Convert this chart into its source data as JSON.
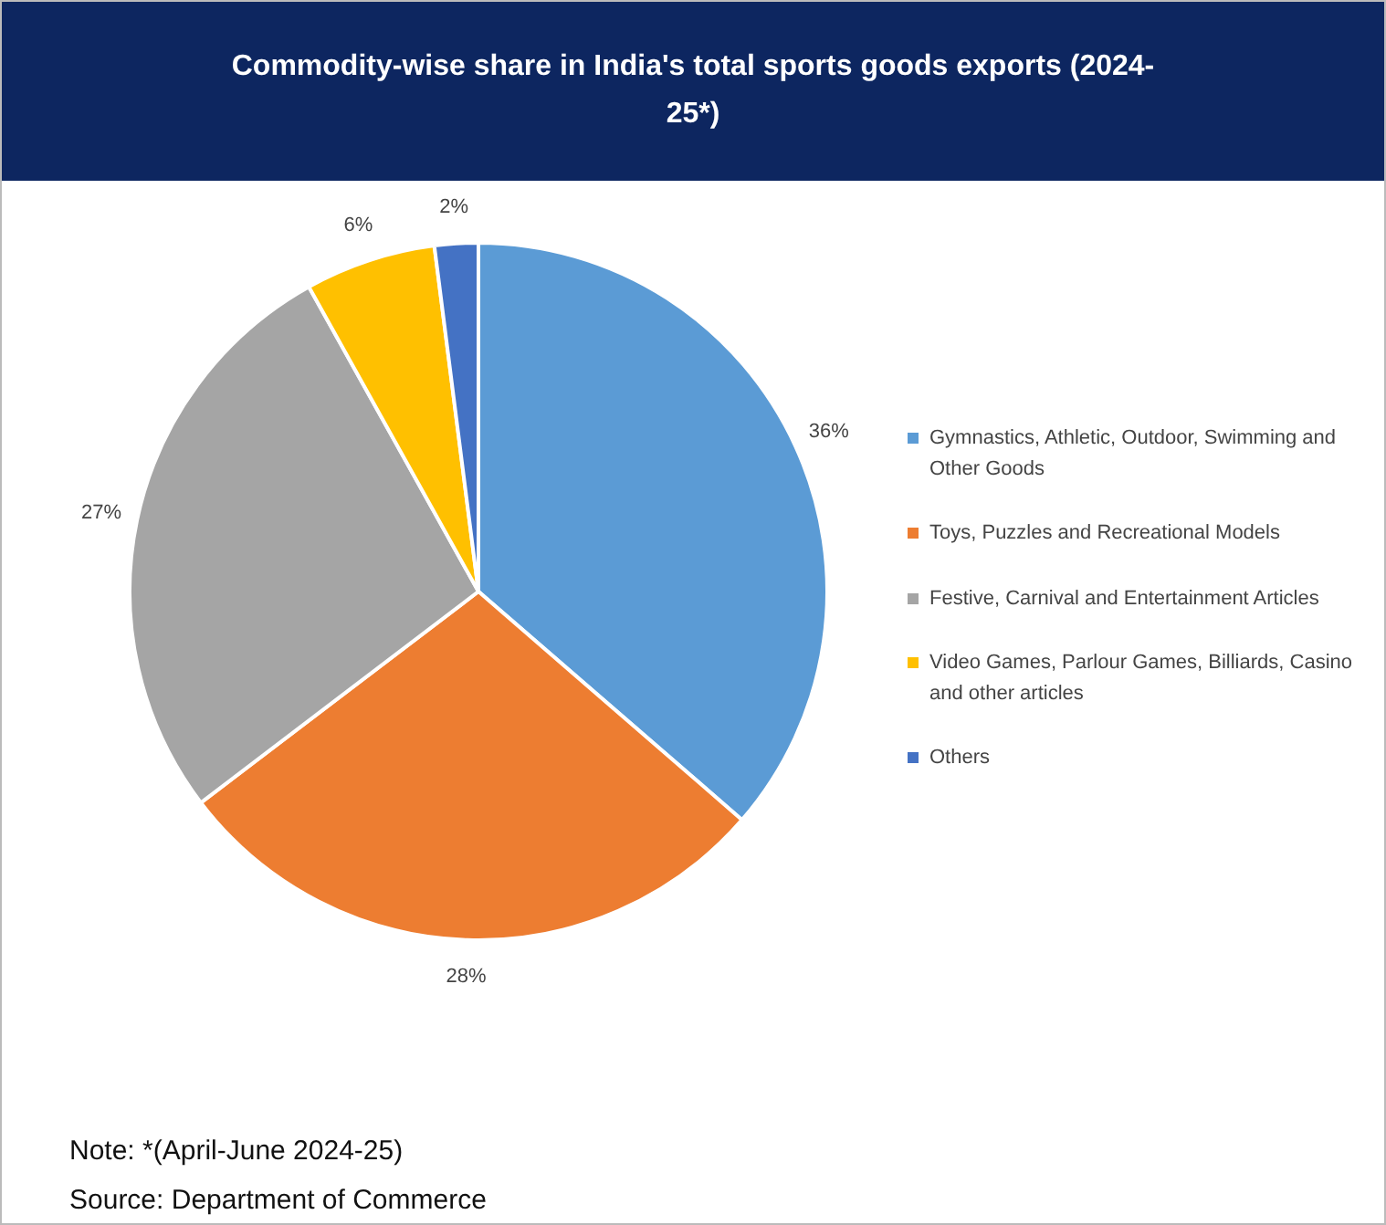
{
  "chart_data": {
    "type": "pie",
    "title": "Commodity-wise share in India's total sports goods exports (2024-25*)",
    "categories": [
      "Gymnastics, Athletic, Outdoor, Swimming and Other Goods",
      "Toys, Puzzles and Recreational Models",
      "Festive, Carnival and Entertainment Articles",
      "Video Games, Parlour Games, Billiards, Casino and other articles",
      "Others"
    ],
    "values": [
      36,
      28,
      27,
      6,
      2
    ],
    "colors": [
      "#5b9bd5",
      "#ed7d31",
      "#a5a5a5",
      "#ffc000",
      "#4472c4"
    ],
    "value_labels": [
      "36%",
      "28%",
      "27%",
      "6%",
      "2%"
    ],
    "legend": "right",
    "annotations": [
      "Note: *(April-June 2024-25)",
      "Source: Department of Commerce"
    ]
  }
}
